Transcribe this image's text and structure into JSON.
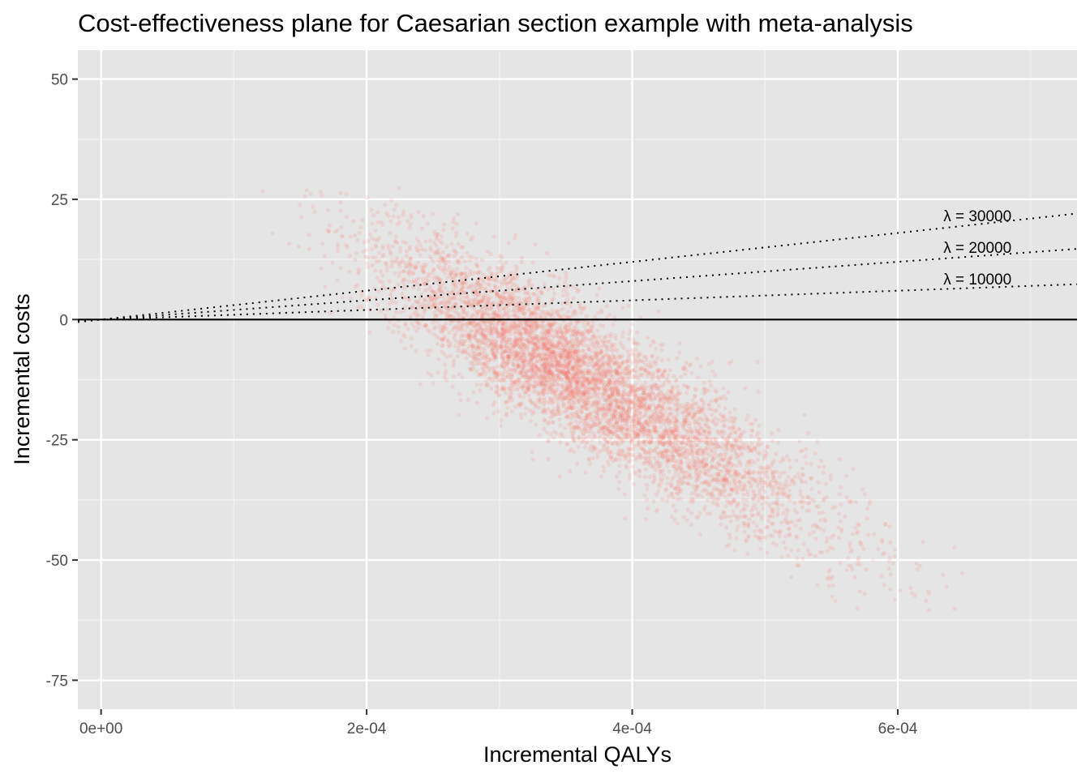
{
  "chart_data": {
    "type": "scatter",
    "title": "Cost-effectiveness plane for Caesarian section example with meta-analysis",
    "xlabel": "Incremental QALYs",
    "ylabel": "Incremental costs",
    "xlim": [
      -1.75e-05,
      0.000735
    ],
    "ylim": [
      -81,
      56
    ],
    "x_ticks": [
      {
        "value": 0,
        "label": "0e+00"
      },
      {
        "value": 0.0002,
        "label": "2e-04"
      },
      {
        "value": 0.0004,
        "label": "4e-04"
      },
      {
        "value": 0.0006,
        "label": "6e-04"
      }
    ],
    "y_ticks": [
      {
        "value": 50,
        "label": "50"
      },
      {
        "value": 25,
        "label": "25"
      },
      {
        "value": 0,
        "label": "0"
      },
      {
        "value": -25,
        "label": "-25"
      },
      {
        "value": -50,
        "label": "-50"
      },
      {
        "value": -75,
        "label": "-75"
      }
    ],
    "grid": true,
    "point_color": "#F8766D",
    "point_alpha": 0.15,
    "scatter_summary": {
      "n_points_approx": 6000,
      "mean_x": 0.00036,
      "mean_y": -12,
      "sd_x": 8e-05,
      "sd_y_residual": 7,
      "slope_y_per_x": -160000,
      "x_range": [
        0.000115,
        0.000715
      ],
      "y_range": [
        -65,
        28
      ]
    },
    "wtp_lines": [
      {
        "lambda": 30000,
        "label": "λ = 30000"
      },
      {
        "lambda": 20000,
        "label": "λ = 20000"
      },
      {
        "lambda": 10000,
        "label": "λ = 10000"
      }
    ],
    "reference_line": {
      "y": 0
    }
  }
}
